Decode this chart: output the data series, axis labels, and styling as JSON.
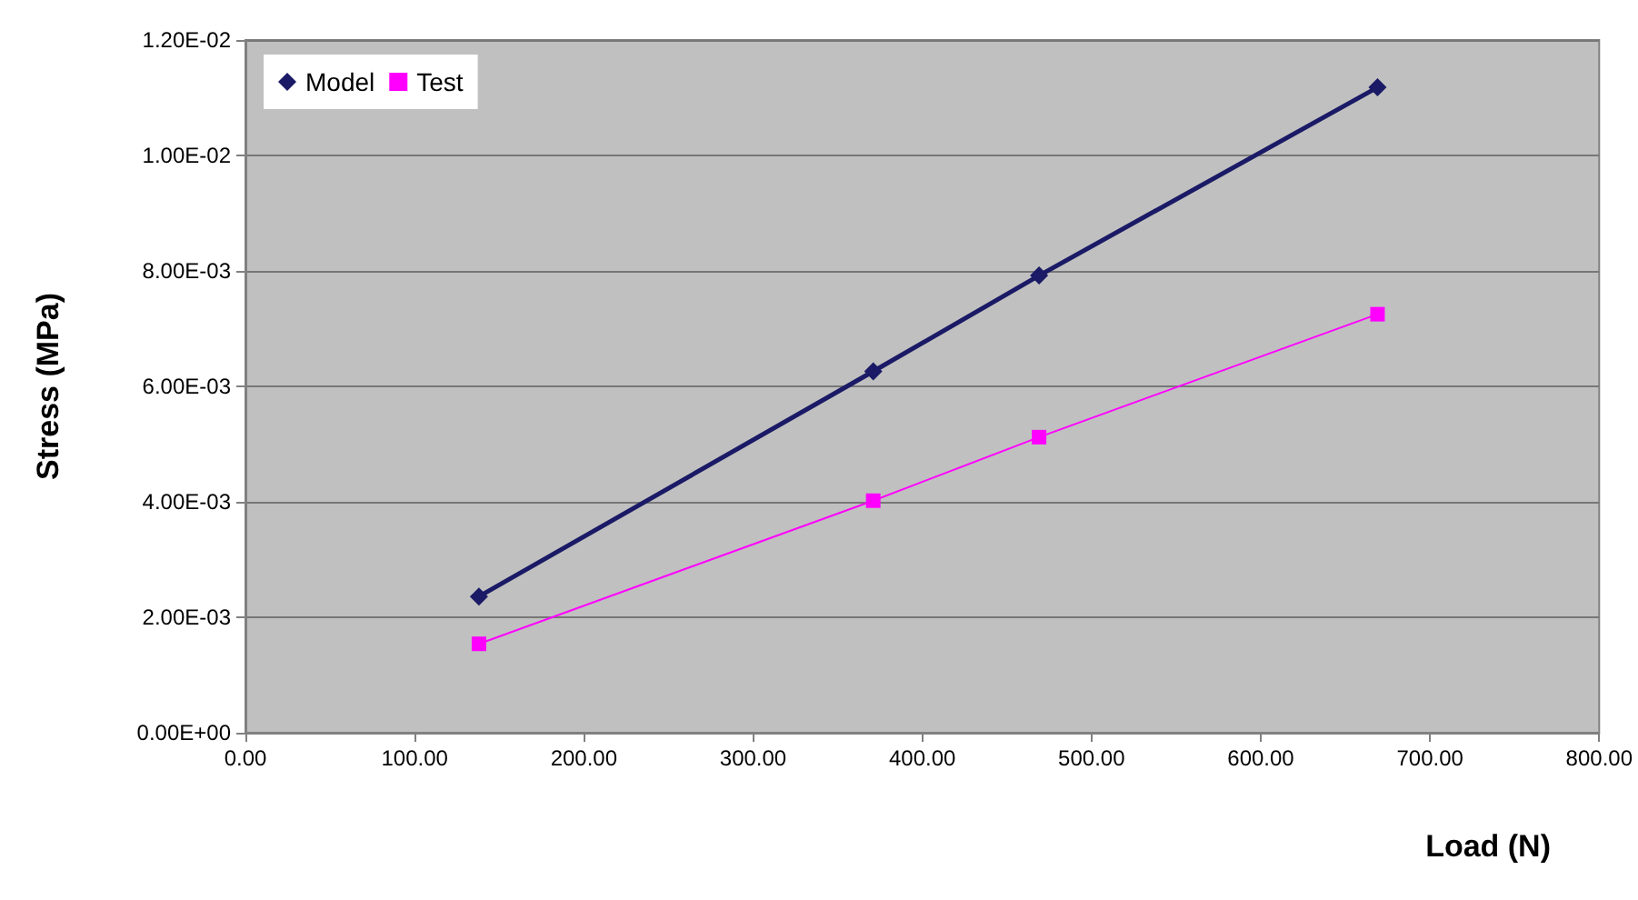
{
  "chart_data": {
    "type": "line",
    "xlabel": "Load (N)",
    "ylabel": "Stress (MPa)",
    "series": [
      {
        "name": "Model",
        "color": "#1a1a66",
        "marker": "diamond",
        "x": [
          138,
          371,
          469,
          669
        ],
        "values": [
          0.00236,
          0.00626,
          0.00792,
          0.01118
        ]
      },
      {
        "name": "Test",
        "color": "#ff00ff",
        "marker": "square",
        "x": [
          138,
          371,
          469,
          669
        ],
        "values": [
          0.00154,
          0.00402,
          0.00512,
          0.00725
        ]
      }
    ],
    "xlim": [
      0,
      800
    ],
    "xticks": [
      {
        "value": 0,
        "label": "0.00"
      },
      {
        "value": 100,
        "label": "100.00"
      },
      {
        "value": 200,
        "label": "200.00"
      },
      {
        "value": 300,
        "label": "300.00"
      },
      {
        "value": 400,
        "label": "400.00"
      },
      {
        "value": 500,
        "label": "500.00"
      },
      {
        "value": 600,
        "label": "600.00"
      },
      {
        "value": 700,
        "label": "700.00"
      },
      {
        "value": 800,
        "label": "800.00"
      }
    ],
    "ylim": [
      0,
      0.012
    ],
    "yticks": [
      {
        "value": 0,
        "label": "0.00E+00"
      },
      {
        "value": 0.002,
        "label": "2.00E-03"
      },
      {
        "value": 0.004,
        "label": "4.00E-03"
      },
      {
        "value": 0.006,
        "label": "6.00E-03"
      },
      {
        "value": 0.008,
        "label": "8.00E-03"
      },
      {
        "value": 0.01,
        "label": "1.00E-02"
      },
      {
        "value": 0.012,
        "label": "1.20E-02"
      }
    ],
    "grid": "y",
    "legend": "top left"
  }
}
